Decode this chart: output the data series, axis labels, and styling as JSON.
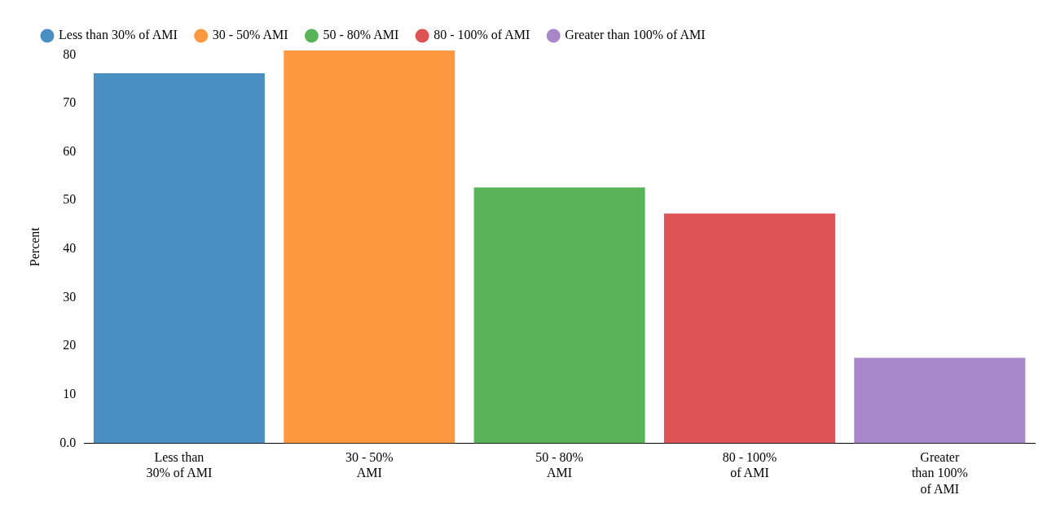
{
  "chart_data": {
    "type": "bar",
    "ylabel": "Percent",
    "categories": [
      "Less than 30% of AMI",
      "30 - 50% AMI",
      "50 - 80% AMI",
      "80 - 100% of AMI",
      "Greater than 100% of AMI"
    ],
    "series": [
      {
        "name": "Less than 30% of AMI",
        "color": "#4a8fc2",
        "values": [
          76.2,
          null,
          null,
          null,
          null
        ]
      },
      {
        "name": "30 - 50% AMI",
        "color": "#fd9841",
        "values": [
          null,
          80.9,
          null,
          null,
          null
        ]
      },
      {
        "name": "50 - 80% AMI",
        "color": "#59b459",
        "values": [
          null,
          null,
          52.7,
          null,
          null
        ]
      },
      {
        "name": "80 - 100% of AMI",
        "color": "#de5254",
        "values": [
          null,
          null,
          null,
          47.3,
          null
        ]
      },
      {
        "name": "Greater than 100% of AMI",
        "color": "#a886c9",
        "values": [
          null,
          null,
          null,
          null,
          17.6
        ]
      }
    ],
    "ylim": [
      0,
      80.9
    ],
    "yticks": [
      {
        "value": 0,
        "label": "0.0"
      },
      10,
      20,
      30,
      40,
      50,
      60,
      70,
      80
    ],
    "grid": false,
    "legend": "top left"
  }
}
